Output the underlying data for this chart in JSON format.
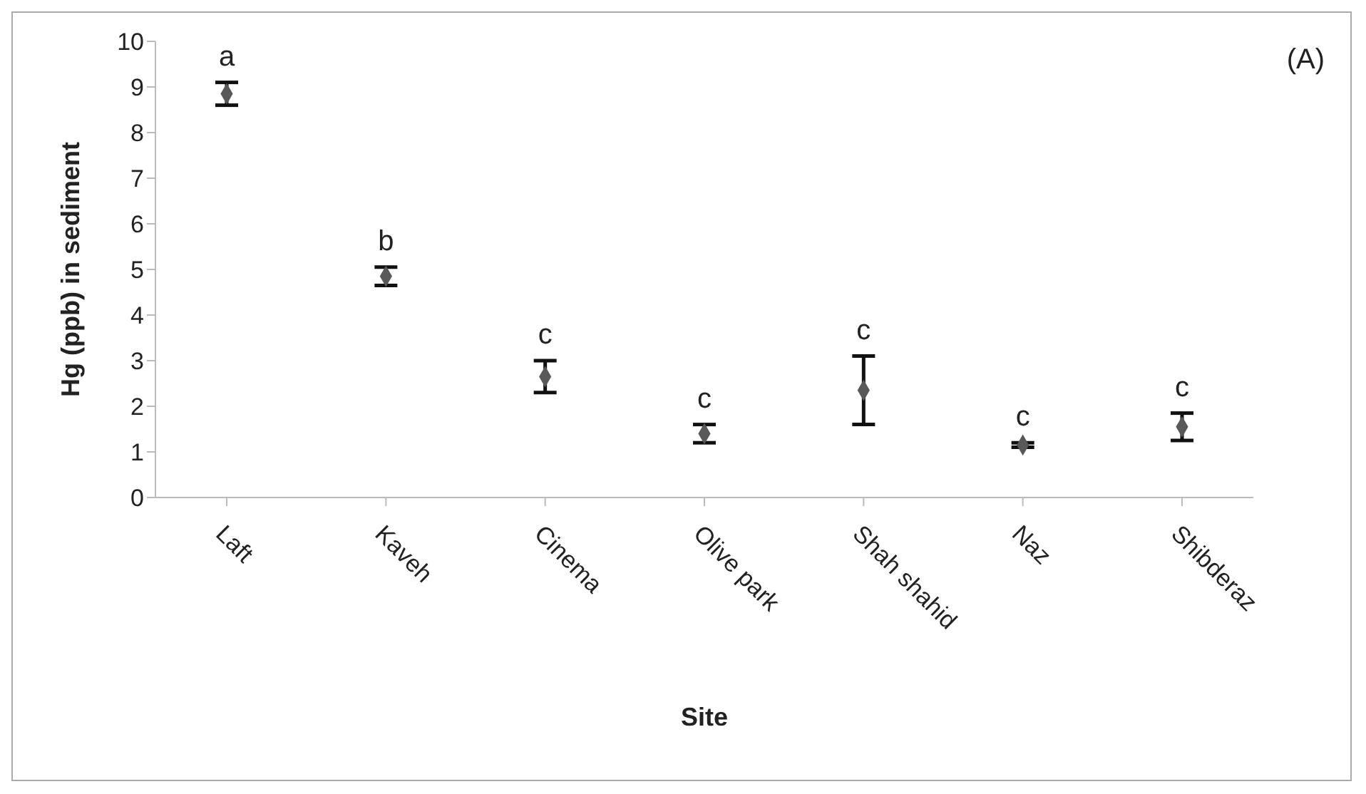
{
  "chart_data": {
    "type": "scatter",
    "xlabel": "Site",
    "ylabel": "Hg (ppb) in sediment",
    "categories": [
      "Laft",
      "Kaveh",
      "Cinema",
      "Olive park",
      "Shah shahid",
      "Naz",
      "Shibderaz"
    ],
    "series": [
      {
        "color": "#595959",
        "values": [
          8.85,
          4.85,
          2.65,
          1.4,
          2.35,
          1.15,
          1.55
        ],
        "errors": [
          0.25,
          0.2,
          0.35,
          0.2,
          0.75,
          0.05,
          0.3
        ]
      }
    ],
    "ylim": [
      0,
      10
    ],
    "yticks": [
      0,
      1,
      2,
      3,
      4,
      5,
      6,
      7,
      8,
      9,
      10
    ],
    "grid": false,
    "legend": false,
    "marker": "diamond",
    "annotations": [
      "(A)",
      "a",
      "b",
      "c",
      "c",
      "c",
      "c",
      "c"
    ]
  }
}
